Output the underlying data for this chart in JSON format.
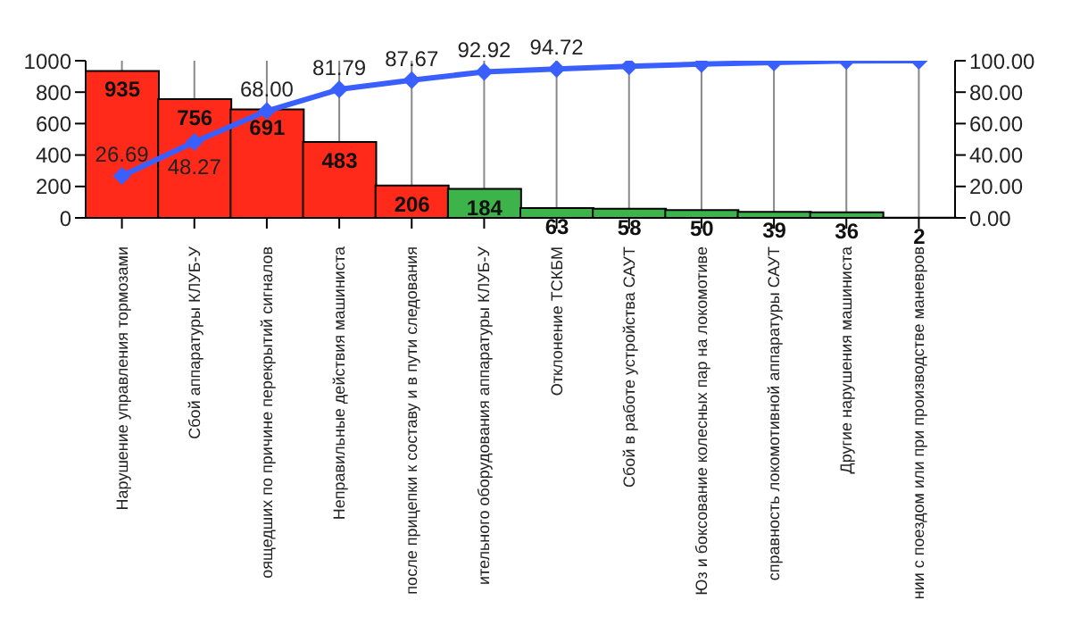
{
  "chart_data": {
    "type": "bar",
    "categories": [
      "Нарушение управления тормозами",
      "Сбой аппаратуры КЛУБ-У",
      "оящедших по причине перекрытий сигналов",
      "Неправильные действия машиниста",
      "после прицепки к составу и в пути следования",
      "ительного оборудования аппаратуры КЛУБ-У",
      "Отклонение ТСКБМ",
      "Сбой в работе устройства САУТ",
      "Юз и боксование колесных пар на локомотиве",
      "справность локомотивной аппаратуры САУТ",
      "Другие нарушения машиниста",
      "нии с поездом или при производстве маневров"
    ],
    "series": [
      {
        "colors": [
          "#ff2a1a",
          "#ff2a1a",
          "#ff2a1a",
          "#ff2a1a",
          "#ff2a1a",
          "#3cb44a",
          "#3cb44a",
          "#3cb44a",
          "#3cb44a",
          "#3cb44a",
          "#3cb44a",
          "#1a2a50"
        ],
        "values": [
          935,
          756,
          691,
          483,
          206,
          184,
          63,
          58,
          50,
          39,
          36,
          2
        ],
        "value_labels": [
          "935",
          "756",
          "691",
          "483",
          "206",
          "184",
          "63",
          "58",
          "50",
          "39",
          "36",
          "2"
        ]
      },
      {
        "type": "line",
        "axis": "y2",
        "color": "#3a5fff",
        "values": [
          26.69,
          48.27,
          68.0,
          81.79,
          87.67,
          92.92,
          94.72,
          96.4,
          97.8,
          98.9,
          99.9,
          100
        ],
        "value_labels": [
          "26.69",
          "48.27",
          "68.00",
          "81.79",
          "87.67",
          "92.92",
          "94.72",
          null,
          null,
          null,
          null,
          null
        ]
      }
    ],
    "ylim": [
      0,
      1000
    ],
    "yticks": [
      0,
      200,
      400,
      600,
      800,
      1000
    ],
    "y2lim": [
      0,
      100
    ],
    "y2ticks": [
      {
        "value": 0,
        "label": "0.00"
      },
      {
        "value": 20,
        "label": "20.00"
      },
      {
        "value": 40,
        "label": "40.00"
      },
      {
        "value": 60,
        "label": "60.00"
      },
      {
        "value": 80,
        "label": "80.00"
      },
      {
        "value": 100,
        "label": "100.00"
      }
    ],
    "grid": "x",
    "marker": "diamond",
    "line_style": "solid",
    "legend": false
  }
}
